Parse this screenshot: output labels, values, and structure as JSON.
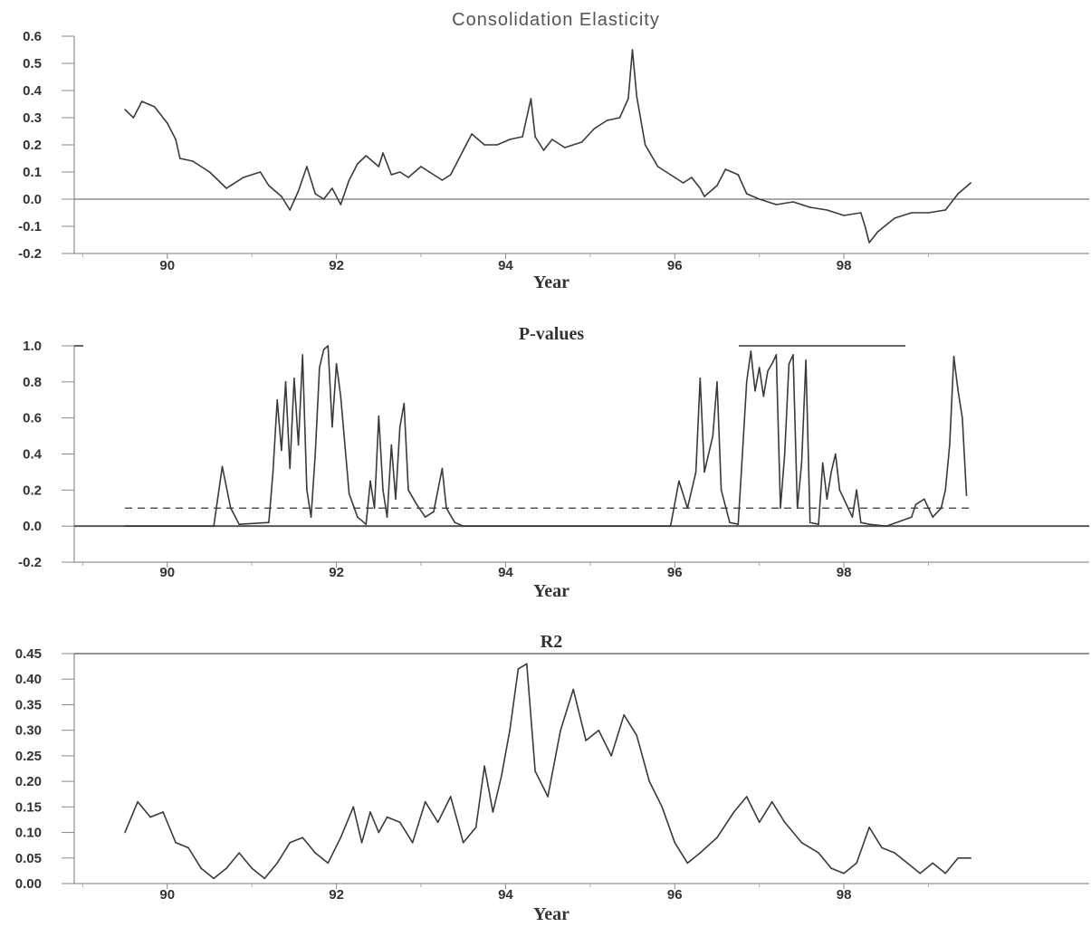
{
  "chart_data": [
    {
      "type": "line",
      "title": "Consolidation  Elasticity",
      "xlabel": "Year",
      "ylabel": "",
      "xlim": [
        88.9,
        100.9
      ],
      "ylim": [
        -0.2,
        0.6
      ],
      "x_ticks": [
        90,
        92,
        94,
        96,
        98
      ],
      "y_ticks": [
        -0.2,
        -0.1,
        0.0,
        0.1,
        0.2,
        0.3,
        0.4,
        0.5,
        0.6
      ],
      "y_tick_labels": [
        "-0.2",
        "-0.1",
        "0.0",
        "0.1",
        "0.2",
        "0.3",
        "0.4",
        "0.5",
        "0.6"
      ],
      "reference_lines": [
        {
          "y": 0.0,
          "style": "solid"
        }
      ],
      "series": [
        {
          "x": [
            89.5,
            89.6,
            89.7,
            89.85,
            90.0,
            90.1,
            90.15,
            90.3,
            90.5,
            90.7,
            90.9,
            91.1,
            91.2,
            91.35,
            91.45,
            91.55,
            91.65,
            91.75,
            91.85,
            91.95,
            92.05,
            92.15,
            92.25,
            92.35,
            92.5,
            92.55,
            92.65,
            92.75,
            92.85,
            93.0,
            93.1,
            93.25,
            93.35,
            93.5,
            93.6,
            93.75,
            93.9,
            94.05,
            94.2,
            94.3,
            94.35,
            94.45,
            94.55,
            94.7,
            94.9,
            95.05,
            95.2,
            95.35,
            95.45,
            95.5,
            95.55,
            95.65,
            95.8,
            95.95,
            96.1,
            96.2,
            96.3,
            96.35,
            96.5,
            96.6,
            96.75,
            96.85,
            97.0,
            97.2,
            97.4,
            97.6,
            97.8,
            98.0,
            98.2,
            98.25,
            98.3,
            98.4,
            98.6,
            98.8,
            99.0,
            99.2,
            99.35,
            99.5
          ],
          "values": [
            0.33,
            0.3,
            0.36,
            0.34,
            0.28,
            0.22,
            0.15,
            0.14,
            0.1,
            0.04,
            0.08,
            0.1,
            0.05,
            0.01,
            -0.04,
            0.03,
            0.12,
            0.02,
            0.0,
            0.04,
            -0.02,
            0.07,
            0.13,
            0.16,
            0.12,
            0.17,
            0.09,
            0.1,
            0.08,
            0.12,
            0.1,
            0.07,
            0.09,
            0.18,
            0.24,
            0.2,
            0.2,
            0.22,
            0.23,
            0.37,
            0.23,
            0.18,
            0.22,
            0.19,
            0.21,
            0.26,
            0.29,
            0.3,
            0.37,
            0.55,
            0.38,
            0.2,
            0.12,
            0.09,
            0.06,
            0.08,
            0.04,
            0.01,
            0.05,
            0.11,
            0.09,
            0.02,
            0.0,
            -0.02,
            -0.01,
            -0.03,
            -0.04,
            -0.06,
            -0.05,
            -0.1,
            -0.16,
            -0.12,
            -0.07,
            -0.05,
            -0.05,
            -0.04,
            0.02,
            0.06
          ]
        }
      ]
    },
    {
      "type": "line",
      "title": "P-values",
      "xlabel": "Year",
      "ylabel": "",
      "xlim": [
        88.9,
        100.9
      ],
      "ylim": [
        -0.2,
        1.0
      ],
      "x_ticks": [
        90,
        92,
        94,
        96,
        98
      ],
      "y_ticks": [
        -0.2,
        0.0,
        0.2,
        0.4,
        0.6,
        0.8,
        1.0
      ],
      "y_tick_labels": [
        "-0.2",
        "0.0",
        "0.2",
        "0.4",
        "0.6",
        "0.8",
        "1.0"
      ],
      "reference_lines": [
        {
          "y": 0.0,
          "style": "solid"
        },
        {
          "y": 0.1,
          "style": "dashed"
        }
      ],
      "series": [
        {
          "x": [
            89.5,
            90.55,
            90.65,
            90.75,
            90.85,
            91.2,
            91.25,
            91.3,
            91.35,
            91.4,
            91.45,
            91.5,
            91.55,
            91.6,
            91.65,
            91.7,
            91.75,
            91.8,
            91.85,
            91.9,
            91.95,
            92.0,
            92.05,
            92.15,
            92.25,
            92.35,
            92.4,
            92.45,
            92.5,
            92.55,
            92.6,
            92.65,
            92.7,
            92.75,
            92.8,
            92.85,
            92.95,
            93.05,
            93.15,
            93.25,
            93.3,
            93.4,
            93.5,
            95.95,
            96.05,
            96.15,
            96.25,
            96.3,
            96.35,
            96.45,
            96.5,
            96.55,
            96.65,
            96.75,
            96.8,
            96.85,
            96.9,
            96.95,
            97.0,
            97.05,
            97.1,
            97.15,
            97.2,
            97.25,
            97.3,
            97.35,
            97.4,
            97.45,
            97.5,
            97.55,
            97.6,
            97.7,
            97.75,
            97.8,
            97.85,
            97.9,
            97.95,
            98.0,
            98.1,
            98.15,
            98.2,
            98.3,
            98.5,
            98.8,
            98.85,
            98.95,
            99.05,
            99.15,
            99.2,
            99.25,
            99.3,
            99.35,
            99.4,
            99.45
          ],
          "values": [
            0.0,
            0.0,
            0.33,
            0.1,
            0.01,
            0.02,
            0.3,
            0.7,
            0.42,
            0.8,
            0.32,
            0.82,
            0.45,
            0.95,
            0.2,
            0.05,
            0.4,
            0.88,
            0.98,
            1.0,
            0.55,
            0.9,
            0.72,
            0.18,
            0.05,
            0.01,
            0.25,
            0.1,
            0.61,
            0.2,
            0.05,
            0.45,
            0.15,
            0.55,
            0.68,
            0.2,
            0.12,
            0.05,
            0.08,
            0.32,
            0.1,
            0.02,
            0.0,
            0.0,
            0.25,
            0.1,
            0.3,
            0.82,
            0.3,
            0.5,
            0.8,
            0.2,
            0.02,
            0.01,
            0.4,
            0.8,
            0.97,
            0.75,
            0.88,
            0.72,
            0.86,
            0.9,
            0.95,
            0.1,
            0.4,
            0.9,
            0.95,
            0.1,
            0.35,
            0.92,
            0.02,
            0.01,
            0.35,
            0.15,
            0.3,
            0.4,
            0.2,
            0.15,
            0.05,
            0.2,
            0.02,
            0.01,
            0.0,
            0.05,
            0.12,
            0.15,
            0.05,
            0.1,
            0.2,
            0.45,
            0.94,
            0.75,
            0.6,
            0.17
          ]
        }
      ]
    },
    {
      "type": "line",
      "title": "R2",
      "xlabel": "Year",
      "ylabel": "",
      "xlim": [
        88.9,
        100.9
      ],
      "ylim": [
        0.0,
        0.45
      ],
      "x_ticks": [
        90,
        92,
        94,
        96,
        98
      ],
      "y_ticks": [
        0.0,
        0.05,
        0.1,
        0.15,
        0.2,
        0.25,
        0.3,
        0.35,
        0.4,
        0.45
      ],
      "y_tick_labels": [
        "0.00",
        "0.05",
        "0.10",
        "0.15",
        "0.20",
        "0.25",
        "0.30",
        "0.35",
        "0.40",
        "0.45"
      ],
      "reference_lines": [],
      "series": [
        {
          "x": [
            89.5,
            89.65,
            89.8,
            89.95,
            90.1,
            90.25,
            90.4,
            90.55,
            90.7,
            90.85,
            91.0,
            91.15,
            91.3,
            91.45,
            91.6,
            91.75,
            91.9,
            92.05,
            92.2,
            92.3,
            92.4,
            92.5,
            92.6,
            92.75,
            92.9,
            93.05,
            93.2,
            93.35,
            93.5,
            93.65,
            93.75,
            93.85,
            93.95,
            94.05,
            94.15,
            94.25,
            94.35,
            94.5,
            94.65,
            94.8,
            94.95,
            95.1,
            95.25,
            95.4,
            95.55,
            95.7,
            95.85,
            96.0,
            96.15,
            96.3,
            96.5,
            96.7,
            96.85,
            97.0,
            97.15,
            97.3,
            97.5,
            97.7,
            97.85,
            98.0,
            98.15,
            98.3,
            98.45,
            98.6,
            98.75,
            98.9,
            99.05,
            99.2,
            99.35,
            99.5
          ],
          "values": [
            0.1,
            0.16,
            0.13,
            0.14,
            0.08,
            0.07,
            0.03,
            0.01,
            0.03,
            0.06,
            0.03,
            0.01,
            0.04,
            0.08,
            0.09,
            0.06,
            0.04,
            0.09,
            0.15,
            0.08,
            0.14,
            0.1,
            0.13,
            0.12,
            0.08,
            0.16,
            0.12,
            0.17,
            0.08,
            0.11,
            0.23,
            0.14,
            0.21,
            0.3,
            0.42,
            0.43,
            0.22,
            0.17,
            0.3,
            0.38,
            0.28,
            0.3,
            0.25,
            0.33,
            0.29,
            0.2,
            0.15,
            0.08,
            0.04,
            0.06,
            0.09,
            0.14,
            0.17,
            0.12,
            0.16,
            0.12,
            0.08,
            0.06,
            0.03,
            0.02,
            0.04,
            0.11,
            0.07,
            0.06,
            0.04,
            0.02,
            0.04,
            0.02,
            0.05,
            0.05
          ]
        }
      ]
    }
  ]
}
